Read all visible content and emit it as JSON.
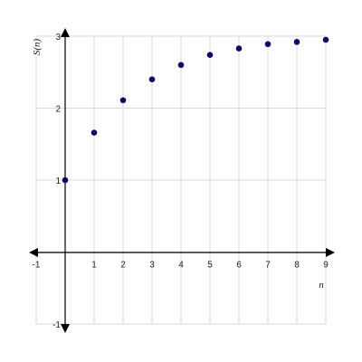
{
  "chart_data": {
    "type": "scatter",
    "xlabel": "n",
    "ylabel": "S(n)",
    "xlim": [
      -1,
      9
    ],
    "ylim": [
      -1,
      3
    ],
    "grid": true,
    "x_ticks": [
      "-1",
      "1",
      "2",
      "3",
      "4",
      "5",
      "6",
      "7",
      "8",
      "9"
    ],
    "y_ticks": [
      "-1",
      "1",
      "2",
      "3"
    ],
    "points": [
      {
        "x": 0,
        "y": 1
      },
      {
        "x": 1,
        "y": 1.66
      },
      {
        "x": 2,
        "y": 2.11
      },
      {
        "x": 3,
        "y": 2.4
      },
      {
        "x": 4,
        "y": 2.6
      },
      {
        "x": 5,
        "y": 2.74
      },
      {
        "x": 6,
        "y": 2.83
      },
      {
        "x": 7,
        "y": 2.89
      },
      {
        "x": 8,
        "y": 2.92
      },
      {
        "x": 9,
        "y": 2.95
      }
    ],
    "point_color": "#0a0a6e"
  }
}
